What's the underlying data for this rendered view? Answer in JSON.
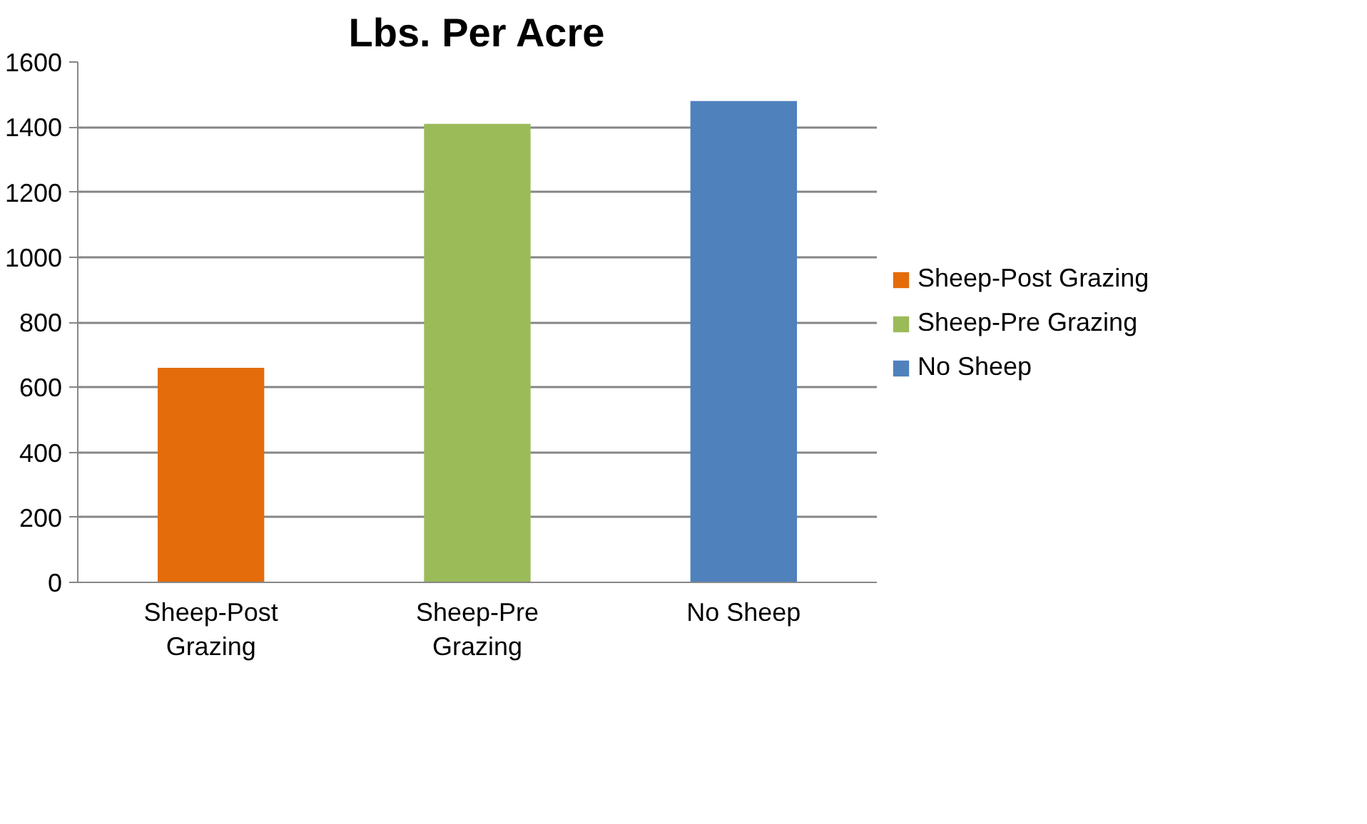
{
  "chart_data": {
    "type": "bar",
    "title": "Lbs. Per Acre",
    "categories": [
      "Sheep-Post Grazing",
      "Sheep-Pre Grazing",
      "No Sheep"
    ],
    "series": [
      {
        "name": "Sheep-Post Grazing",
        "color": "#e46c0a",
        "values": [
          660,
          null,
          null
        ]
      },
      {
        "name": "Sheep-Pre Grazing",
        "color": "#9bbb59",
        "values": [
          null,
          1410,
          null
        ]
      },
      {
        "name": "No Sheep",
        "color": "#4f81bd",
        "values": [
          null,
          null,
          1480
        ]
      }
    ],
    "stacked": true,
    "ylim": [
      0,
      1600
    ],
    "yticks": [
      0,
      200,
      400,
      600,
      800,
      1000,
      1200,
      1400,
      1600
    ],
    "grid": "y",
    "legend": "right"
  }
}
